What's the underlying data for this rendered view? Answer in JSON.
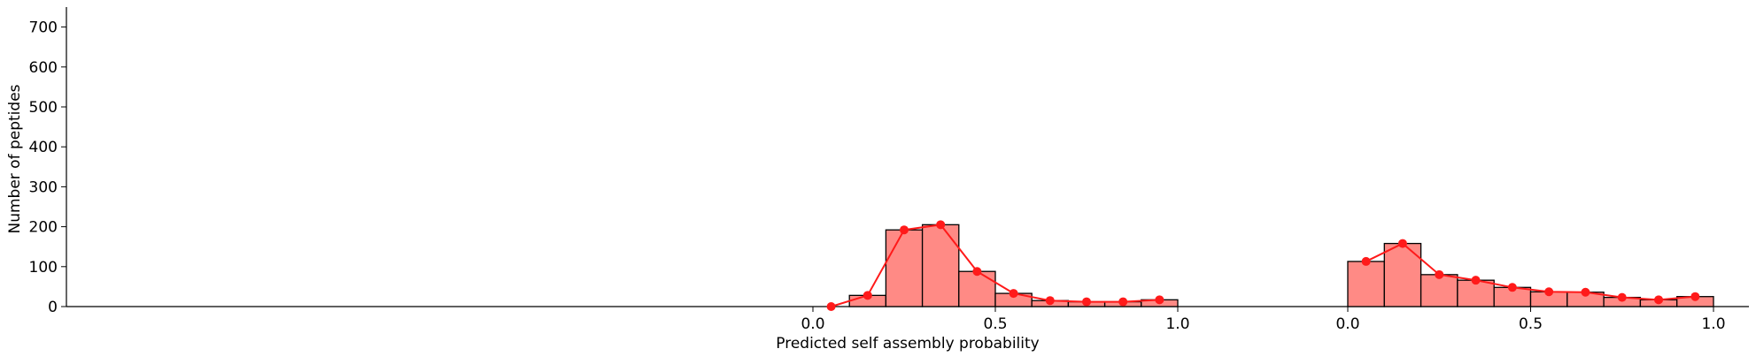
{
  "chart_data": {
    "type": "bar",
    "xlabel": "Predicted self assembly probability",
    "ylabel": "Number of peptides",
    "ylim": [
      0,
      750
    ],
    "y_ticks": [
      0,
      100,
      200,
      300,
      400,
      500,
      600,
      700
    ],
    "grid": false,
    "colors": {
      "bar_fill": "#ff8a85",
      "bar_edge": "#000000",
      "line": "#ff1a1a"
    },
    "panels": [
      {
        "xlim": [
          0,
          1
        ],
        "x_ticks": [
          "0.0",
          "0.5",
          "1.0"
        ],
        "bins": [
          {
            "x0": 0.0,
            "x1": 0.1,
            "value": 0
          },
          {
            "x0": 0.1,
            "x1": 0.2,
            "value": 28
          },
          {
            "x0": 0.2,
            "x1": 0.3,
            "value": 192
          },
          {
            "x0": 0.3,
            "x1": 0.4,
            "value": 205
          },
          {
            "x0": 0.4,
            "x1": 0.5,
            "value": 88
          },
          {
            "x0": 0.5,
            "x1": 0.6,
            "value": 33
          },
          {
            "x0": 0.6,
            "x1": 0.7,
            "value": 15
          },
          {
            "x0": 0.7,
            "x1": 0.8,
            "value": 12
          },
          {
            "x0": 0.8,
            "x1": 0.9,
            "value": 12
          },
          {
            "x0": 0.9,
            "x1": 1.0,
            "value": 17
          }
        ],
        "points": [
          {
            "x": 0.05,
            "y": 0
          },
          {
            "x": 0.15,
            "y": 28
          },
          {
            "x": 0.25,
            "y": 192
          },
          {
            "x": 0.35,
            "y": 205
          },
          {
            "x": 0.45,
            "y": 88
          },
          {
            "x": 0.55,
            "y": 33
          },
          {
            "x": 0.65,
            "y": 15
          },
          {
            "x": 0.75,
            "y": 12
          },
          {
            "x": 0.85,
            "y": 12
          },
          {
            "x": 0.95,
            "y": 17
          }
        ]
      },
      {
        "xlim": [
          0,
          1
        ],
        "x_ticks": [
          "0.0",
          "0.5",
          "1.0"
        ],
        "bins": [
          {
            "x0": 0.0,
            "x1": 0.1,
            "value": 113
          },
          {
            "x0": 0.1,
            "x1": 0.2,
            "value": 158
          },
          {
            "x0": 0.2,
            "x1": 0.3,
            "value": 80
          },
          {
            "x0": 0.3,
            "x1": 0.4,
            "value": 66
          },
          {
            "x0": 0.4,
            "x1": 0.5,
            "value": 48
          },
          {
            "x0": 0.5,
            "x1": 0.6,
            "value": 37
          },
          {
            "x0": 0.6,
            "x1": 0.7,
            "value": 36
          },
          {
            "x0": 0.7,
            "x1": 0.8,
            "value": 23
          },
          {
            "x0": 0.8,
            "x1": 0.9,
            "value": 17
          },
          {
            "x0": 0.9,
            "x1": 1.0,
            "value": 25
          }
        ],
        "points": [
          {
            "x": 0.05,
            "y": 113
          },
          {
            "x": 0.15,
            "y": 158
          },
          {
            "x": 0.25,
            "y": 80
          },
          {
            "x": 0.35,
            "y": 66
          },
          {
            "x": 0.45,
            "y": 48
          },
          {
            "x": 0.55,
            "y": 37
          },
          {
            "x": 0.65,
            "y": 36
          },
          {
            "x": 0.75,
            "y": 23
          },
          {
            "x": 0.85,
            "y": 17
          },
          {
            "x": 0.95,
            "y": 25
          }
        ]
      }
    ]
  }
}
